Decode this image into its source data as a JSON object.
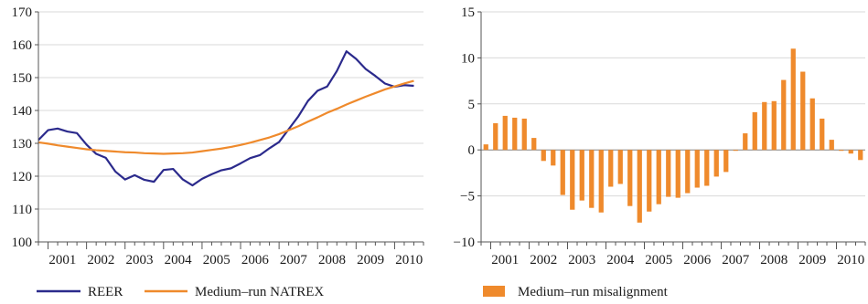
{
  "colors": {
    "reer": "#2b2a8c",
    "natrex": "#ef8a2c",
    "misalignment": "#ef8a2c",
    "grid": "#d9d9d9",
    "axis": "#555555"
  },
  "chart_data": [
    {
      "type": "line",
      "title": "",
      "xlabel": "",
      "ylabel": "",
      "ylim": [
        100,
        170
      ],
      "yticks": [
        "100",
        "110",
        "120",
        "130",
        "140",
        "150",
        "160",
        "170"
      ],
      "xticks": [
        "2001",
        "2002",
        "2003",
        "2004",
        "2005",
        "2006",
        "2007",
        "2008",
        "2009",
        "2010"
      ],
      "grid": true,
      "legend": "bottom",
      "x": [
        2000.75,
        2001.0,
        2001.25,
        2001.5,
        2001.75,
        2002.0,
        2002.25,
        2002.5,
        2002.75,
        2003.0,
        2003.25,
        2003.5,
        2003.75,
        2004.0,
        2004.25,
        2004.5,
        2004.75,
        2005.0,
        2005.25,
        2005.5,
        2005.75,
        2006.0,
        2006.25,
        2006.5,
        2006.75,
        2007.0,
        2007.25,
        2007.5,
        2007.75,
        2008.0,
        2008.25,
        2008.5,
        2008.75,
        2009.0,
        2009.25,
        2009.5,
        2009.75,
        2010.0,
        2010.25,
        2010.5
      ],
      "series": [
        {
          "name": "REER",
          "values": [
            131.0,
            134.0,
            134.5,
            133.6,
            133.1,
            129.6,
            126.8,
            125.6,
            121.4,
            119.0,
            120.3,
            118.9,
            118.3,
            121.9,
            122.2,
            119.0,
            117.2,
            119.2,
            120.6,
            121.8,
            122.4,
            123.9,
            125.5,
            126.4,
            128.5,
            130.4,
            134.3,
            138.2,
            142.9,
            146.0,
            147.3,
            152.0,
            158.0,
            155.7,
            152.6,
            150.5,
            148.2,
            147.2,
            147.7,
            147.5
          ]
        },
        {
          "name": "Medium–run NATREX",
          "values": [
            130.3,
            129.9,
            129.4,
            129.0,
            128.6,
            128.2,
            127.9,
            127.7,
            127.5,
            127.3,
            127.2,
            127.0,
            126.9,
            126.8,
            126.9,
            127.0,
            127.2,
            127.6,
            128.0,
            128.4,
            128.9,
            129.5,
            130.2,
            131.0,
            131.8,
            132.8,
            134.0,
            135.2,
            136.6,
            137.9,
            139.3,
            140.5,
            141.8,
            143.0,
            144.2,
            145.3,
            146.4,
            147.3,
            148.2,
            149.0
          ]
        }
      ]
    },
    {
      "type": "bar",
      "title": "",
      "xlabel": "",
      "ylabel": "",
      "ylim": [
        -10,
        15
      ],
      "yticks": [
        "−10",
        "−5",
        "0",
        "5",
        "10",
        "15"
      ],
      "xticks": [
        "2001",
        "2002",
        "2003",
        "2004",
        "2005",
        "2006",
        "2007",
        "2008",
        "2009",
        "2010"
      ],
      "grid": true,
      "legend": "bottom",
      "x": [
        2000.75,
        2001.0,
        2001.25,
        2001.5,
        2001.75,
        2002.0,
        2002.25,
        2002.5,
        2002.75,
        2003.0,
        2003.25,
        2003.5,
        2003.75,
        2004.0,
        2004.25,
        2004.5,
        2004.75,
        2005.0,
        2005.25,
        2005.5,
        2005.75,
        2006.0,
        2006.25,
        2006.5,
        2006.75,
        2007.0,
        2007.25,
        2007.5,
        2007.75,
        2008.0,
        2008.25,
        2008.5,
        2008.75,
        2009.0,
        2009.25,
        2009.5,
        2009.75,
        2010.0,
        2010.25,
        2010.5
      ],
      "series": [
        {
          "name": "Medium–run misalignment",
          "values": [
            0.6,
            2.9,
            3.7,
            3.5,
            3.4,
            1.3,
            -1.2,
            -1.7,
            -4.9,
            -6.5,
            -5.5,
            -6.3,
            -6.8,
            -4.0,
            -3.7,
            -6.1,
            -7.9,
            -6.7,
            -5.9,
            -5.1,
            -5.2,
            -4.7,
            -4.1,
            -3.9,
            -2.9,
            -2.4,
            -0.1,
            1.8,
            4.1,
            5.2,
            5.3,
            7.6,
            11.0,
            8.5,
            5.6,
            3.4,
            1.1,
            -0.1,
            -0.4,
            -1.1
          ]
        }
      ]
    }
  ]
}
